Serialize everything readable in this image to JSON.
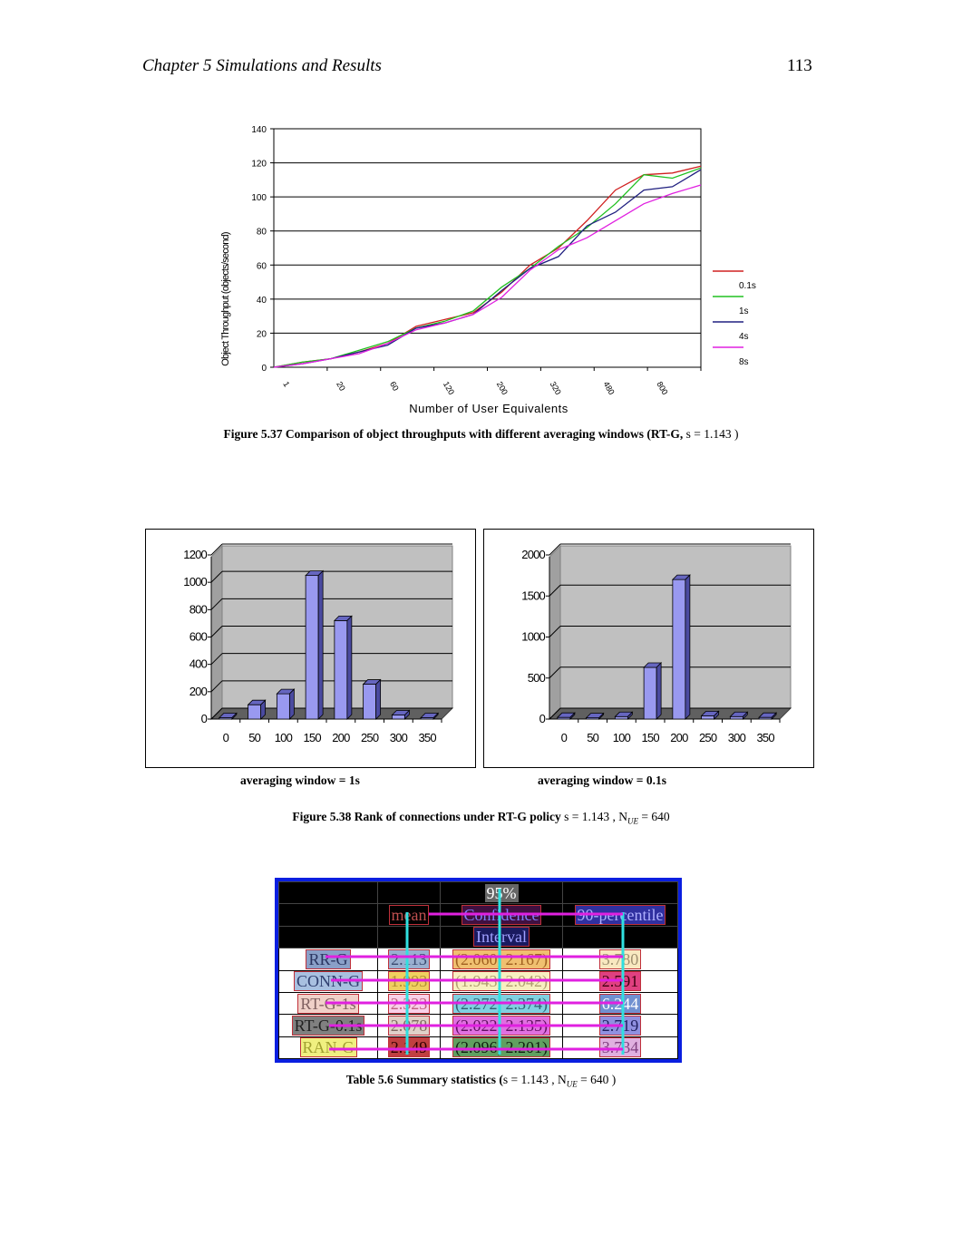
{
  "header": {
    "chapter": "Chapter 5 Simulations and Results",
    "page_number": "113"
  },
  "figure_537": {
    "caption": "Figure 5.37 Comparison of object throughputs with different averaging windows (RT-G,",
    "caption_math": "s = 1.143 )",
    "chart_data": {
      "type": "line",
      "xlabel": "Number of User Equivalents",
      "ylabel": "Object Throughput (objects/second)",
      "ylim": [
        0,
        140
      ],
      "yticks": [
        "0",
        "20",
        "40",
        "60",
        "80",
        "100",
        "120",
        "140"
      ],
      "xticks": [
        "1",
        "20",
        "60",
        "120",
        "200",
        "320",
        "480",
        "800"
      ],
      "legend_position": "right",
      "series": [
        {
          "name": "0.1s",
          "color": "#d02020",
          "values": [
            0,
            3,
            5,
            9,
            14,
            24,
            28,
            32,
            44,
            60,
            70,
            86,
            104,
            113,
            114,
            118
          ]
        },
        {
          "name": "1s",
          "color": "#20c020",
          "values": [
            0,
            3,
            5,
            10,
            15,
            23,
            27,
            33,
            47,
            58,
            71,
            82,
            96,
            113,
            111,
            117
          ]
        },
        {
          "name": "4s",
          "color": "#202080",
          "values": [
            0,
            2,
            5,
            9,
            13,
            23,
            26,
            31,
            45,
            58,
            65,
            83,
            91,
            104,
            106,
            116
          ]
        },
        {
          "name": "8s",
          "color": "#e020e0",
          "values": [
            0,
            2,
            5,
            8,
            14,
            22,
            26,
            31,
            41,
            57,
            69,
            76,
            86,
            96,
            102,
            107
          ]
        }
      ]
    }
  },
  "figure_538": {
    "caption": "Figure 5.38 Rank of connections under RT-G policy",
    "caption_math": "s = 1.143 , N",
    "caption_math_sub": "UE",
    "caption_math_tail": "= 640",
    "chart_data": [
      {
        "type": "bar",
        "subtitle": "averaging window = 1s",
        "categories": [
          "0",
          "50",
          "100",
          "150",
          "200",
          "250",
          "300",
          "350"
        ],
        "values": [
          10,
          105,
          185,
          1050,
          720,
          255,
          30,
          10
        ],
        "ylim": [
          0,
          1200
        ],
        "yticks": [
          "0",
          "200",
          "400",
          "600",
          "800",
          "1000",
          "1200"
        ]
      },
      {
        "type": "bar",
        "subtitle": "averaging window = 0.1s",
        "categories": [
          "0",
          "50",
          "100",
          "150",
          "200",
          "250",
          "300",
          "350"
        ],
        "values": [
          20,
          15,
          30,
          630,
          1700,
          40,
          30,
          20
        ],
        "ylim": [
          0,
          2000
        ],
        "yticks": [
          "0",
          "500",
          "1000",
          "1500",
          "2000"
        ]
      }
    ]
  },
  "table_56": {
    "caption": "Table 5.6 Summary statistics (",
    "caption_math": "s = 1.143 , N",
    "caption_math_sub": "UE",
    "caption_math_tail": "= 640 )",
    "header_row1": [
      "",
      "",
      "95%",
      ""
    ],
    "header_row2": [
      "",
      "mean",
      "Confidence",
      "90-percentile"
    ],
    "header_row3": [
      "",
      "",
      "Interval",
      ""
    ],
    "rows": [
      {
        "name": "RR-G",
        "mean": "2.113",
        "ci": "(2.060, 2.167)",
        "p90": "3.780"
      },
      {
        "name": "CONN-G",
        "mean": "1.993",
        "ci": "(1.943, 2.042)",
        "p90": "2.591"
      },
      {
        "name": "RT-G-1s",
        "mean": "2.323",
        "ci": "(2.272, 2.374)",
        "p90": "6.244"
      },
      {
        "name": "RT-G-0.1s",
        "mean": "2.078",
        "ci": "(2.022, 2.135)",
        "p90": "2.719"
      },
      {
        "name": "RAN-G",
        "mean": "2.149",
        "ci": "(2.096, 2.201)",
        "p90": "3.734"
      }
    ]
  }
}
